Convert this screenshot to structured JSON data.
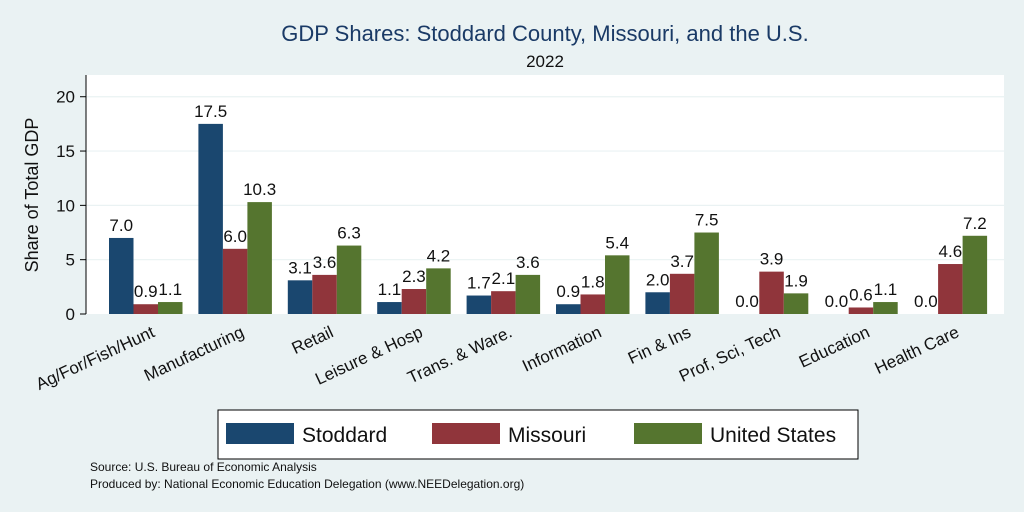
{
  "chart_data": {
    "type": "bar",
    "title": "GDP Shares: Stoddard County, Missouri, and the U.S.",
    "subtitle": "2022",
    "ylabel": "Share of Total GDP",
    "xlabel": "",
    "ylim": [
      0,
      22
    ],
    "yticks": [
      0,
      5,
      10,
      15,
      20
    ],
    "grid": true,
    "legend_position": "bottom",
    "categories": [
      "Ag/For/Fish/Hunt",
      "Manufacturing",
      "Retail",
      "Leisure & Hosp",
      "Trans. & Ware.",
      "Information",
      "Fin & Ins",
      "Prof, Sci, Tech",
      "Education",
      "Health Care"
    ],
    "series": [
      {
        "name": "Stoddard",
        "color": "#1a476f",
        "values": [
          7.0,
          17.5,
          3.1,
          1.1,
          1.7,
          0.9,
          2.0,
          0.0,
          0.0,
          0.0
        ],
        "labels": [
          "7.0",
          "17.5",
          "3.1",
          "1.1",
          "1.7",
          "0.9",
          "2.0",
          "0.0",
          "0.0",
          "0.0"
        ]
      },
      {
        "name": "Missouri",
        "color": "#90353b",
        "values": [
          0.9,
          6.0,
          3.6,
          2.3,
          2.1,
          1.8,
          3.7,
          3.9,
          0.6,
          4.6
        ],
        "labels": [
          "0.9",
          "6.0",
          "3.6",
          "2.3",
          "2.1",
          "1.8",
          "3.7",
          "3.9",
          "0.6",
          "4.6"
        ]
      },
      {
        "name": "United States",
        "color": "#55752f",
        "values": [
          1.1,
          10.3,
          6.3,
          4.2,
          3.6,
          5.4,
          7.5,
          1.9,
          1.1,
          7.2
        ],
        "labels": [
          "1.1",
          "10.3",
          "6.3",
          "4.2",
          "3.6",
          "5.4",
          "7.5",
          "1.9",
          "1.1",
          "7.2"
        ]
      }
    ]
  },
  "footer": {
    "source": "Source: U.S. Bureau of Economic Analysis",
    "produced_by": "Produced by: National Economic Education Delegation (www.NEEDelegation.org)"
  }
}
